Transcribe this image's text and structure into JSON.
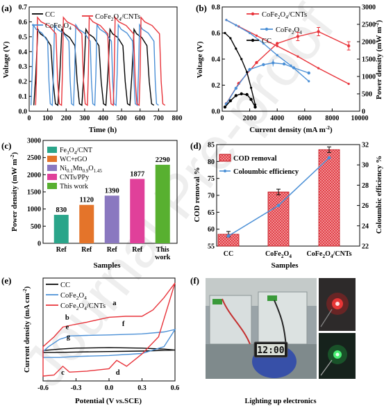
{
  "chart_data": [
    {
      "id": "a",
      "panel_label": "(a)",
      "type": "line",
      "xlabel": "Time (h)",
      "ylabel": "Voltage (V)",
      "xlim": [
        0,
        800
      ],
      "ylim": [
        0,
        0.7
      ],
      "xticks": [
        "0",
        "100",
        "200",
        "300",
        "400",
        "500",
        "600",
        "700",
        "800"
      ],
      "yticks": [
        "0.0",
        "0.1",
        "0.2",
        "0.3",
        "0.4",
        "0.5",
        "0.6",
        "0.7"
      ],
      "legend_position": "top-left",
      "series": [
        {
          "name": "CC",
          "color": "#000000",
          "period": 130,
          "start": 25,
          "rise": 22,
          "plateau": 70,
          "fall": 25,
          "peak": 0.55,
          "plateau_end": 0.44,
          "cycles": 5
        },
        {
          "name": "CoFe2O4",
          "color": "#4a8fd6",
          "period": 115,
          "start": 10,
          "rise": 12,
          "plateau": 78,
          "fall": 14,
          "peak": 0.58,
          "plateau_end": 0.47,
          "cycles": 6
        },
        {
          "name": "CoFe2O4/CNTs",
          "color": "#e8333a",
          "period": 140,
          "start": 35,
          "rise": 10,
          "plateau": 100,
          "fall": 18,
          "peak": 0.63,
          "plateau_end": 0.52,
          "cycles": 5
        }
      ]
    },
    {
      "id": "b",
      "panel_label": "(b)",
      "type": "line",
      "xlabel": "Current density (mA m",
      "xlabel_sup": "-2",
      "xlabel_close": ")",
      "ylabel": "Voltage (V)",
      "y2label": "Power density (mW m",
      "y2label_sup": "-2",
      "y2label_close": ")",
      "xlim": [
        0,
        10000
      ],
      "ylim": [
        0,
        0.8
      ],
      "y2lim": [
        0,
        3000
      ],
      "xticks": [
        "0",
        "2000",
        "4000",
        "6000",
        "8000",
        "10000"
      ],
      "yticks": [
        "0.0",
        "0.2",
        "0.4",
        "0.6",
        "0.8"
      ],
      "y2ticks": [
        "0",
        "500",
        "1000",
        "1500",
        "2000",
        "2500",
        "3000"
      ],
      "legend_position": "top-center",
      "series": [
        {
          "name": "CoFe2O4/CNTs",
          "color": "#e8333a",
          "voltage": [
            [
              300,
              0.7
            ],
            [
              1200,
              0.65
            ],
            [
              2500,
              0.58
            ],
            [
              4000,
              0.5
            ],
            [
              5500,
              0.42
            ],
            [
              7000,
              0.33
            ],
            [
              9200,
              0.21
            ]
          ],
          "power": [
            [
              300,
              220
            ],
            [
              1200,
              800
            ],
            [
              2500,
              1400
            ],
            [
              4000,
              1950
            ],
            [
              5500,
              2150
            ],
            [
              7000,
              2290
            ],
            [
              9200,
              1880
            ]
          ]
        },
        {
          "name": "CoFe2O4",
          "color": "#4a8fd6",
          "voltage": [
            [
              300,
              0.7
            ],
            [
              1000,
              0.66
            ],
            [
              2000,
              0.6
            ],
            [
              3000,
              0.52
            ],
            [
              4000,
              0.43
            ],
            [
              5000,
              0.35
            ],
            [
              6300,
              0.23
            ]
          ],
          "power": [
            [
              300,
              210
            ],
            [
              1000,
              660
            ],
            [
              2000,
              1200
            ],
            [
              3000,
              1340
            ],
            [
              3700,
              1390
            ],
            [
              4500,
              1360
            ],
            [
              5200,
              1250
            ],
            [
              6300,
              1100
            ]
          ]
        },
        {
          "name": "CC",
          "color": "#000000",
          "voltage": [
            [
              200,
              0.6
            ],
            [
              600,
              0.56
            ],
            [
              1000,
              0.48
            ],
            [
              1400,
              0.4
            ],
            [
              1800,
              0.3
            ],
            [
              2100,
              0.18
            ],
            [
              2400,
              0.05
            ]
          ],
          "power": [
            [
              200,
              120
            ],
            [
              600,
              300
            ],
            [
              1000,
              450
            ],
            [
              1400,
              500
            ],
            [
              1800,
              480
            ],
            [
              2100,
              340
            ],
            [
              2400,
              120
            ]
          ]
        }
      ]
    },
    {
      "id": "c",
      "panel_label": "(c)",
      "type": "bar",
      "xlabel": "Samples",
      "ylabel": "Power density (mW m",
      "ylabel_sup": "-2",
      "ylabel_close": ")",
      "ylim": [
        0,
        3000
      ],
      "yticks": [
        "0",
        "500",
        "1000",
        "1500",
        "2000",
        "2500",
        "3000"
      ],
      "categories": [
        "Ref",
        "Ref",
        "Ref",
        "Ref",
        "This work"
      ],
      "values": [
        830,
        1120,
        1390,
        1877,
        2290
      ],
      "value_labels": [
        "830",
        "1120",
        "1390",
        "1877",
        "2290"
      ],
      "colors": [
        "#2aa58a",
        "#e4742a",
        "#8a78c0",
        "#e0409a",
        "#58b030"
      ],
      "legend_position": "top-left",
      "legend": [
        {
          "base": "Fe",
          "sub1": "3",
          "mid": "O",
          "sub2": "4",
          "tail": "/CNT",
          "sub3": "",
          "color": "#2aa58a"
        },
        {
          "base": "WC+rGO",
          "sub1": "",
          "mid": "",
          "sub2": "",
          "tail": "",
          "sub3": "",
          "color": "#e4742a"
        },
        {
          "base": "Ni",
          "sub1": "0.1",
          "mid": "Mn",
          "sub2": "0.9",
          "tail": "O",
          "sub3": "1.45",
          "color": "#8a78c0"
        },
        {
          "base": "CNTs/PPy",
          "sub1": "",
          "mid": "",
          "sub2": "",
          "tail": "",
          "sub3": "",
          "color": "#e0409a"
        },
        {
          "base": "This work",
          "sub1": "",
          "mid": "",
          "sub2": "",
          "tail": "",
          "sub3": "",
          "color": "#58b030"
        }
      ]
    },
    {
      "id": "d",
      "panel_label": "(d)",
      "type": "bar",
      "xlabel": "Samples",
      "ylabel": "COD removal %",
      "y2label": "Coloumbic efficiency %",
      "ylim": [
        55,
        85
      ],
      "y2lim": [
        22,
        32
      ],
      "yticks": [
        "55",
        "60",
        "65",
        "70",
        "75",
        "80",
        "85"
      ],
      "y2ticks": [
        "22",
        "24",
        "26",
        "28",
        "30",
        "32"
      ],
      "categories": [
        "CC",
        "CoFe2O4",
        "CoFe2O4/CNTs"
      ],
      "cod_removal": [
        58.5,
        71.0,
        83.5
      ],
      "coulombic_efficiency": [
        23.0,
        26.0,
        30.7
      ],
      "bar_color": "#e8333a",
      "line_color": "#4a8fd6",
      "legend_position": "top-left",
      "legend": [
        "COD removal",
        "Coloumbic efficiency"
      ]
    },
    {
      "id": "e",
      "panel_label": "(e)",
      "type": "line",
      "xlabel_pre": "Potential (V ",
      "xlabel_italic": "vs.",
      "xlabel_post": "SCE)",
      "ylabel": "Current density (mA cm",
      "ylabel_sup": "-2",
      "ylabel_close": ")",
      "xlim": [
        -0.6,
        0.6
      ],
      "ylim": [
        -0.6,
        1.5
      ],
      "xticks": [
        "-0.6",
        "-0.3",
        "0.0",
        "0.3",
        "0.6"
      ],
      "legend_position": "top-left",
      "series": [
        {
          "name": "CC",
          "color": "#000000",
          "points": [
            [
              -0.6,
              -0.02
            ],
            [
              -0.5,
              -0.02
            ],
            [
              -0.3,
              -0.01
            ],
            [
              0.0,
              0.0
            ],
            [
              0.3,
              0.01
            ],
            [
              0.6,
              0.03
            ],
            [
              0.5,
              0.05
            ],
            [
              0.3,
              0.07
            ],
            [
              0.0,
              0.08
            ],
            [
              -0.3,
              0.07
            ],
            [
              -0.45,
              0.05
            ],
            [
              -0.6,
              0.02
            ]
          ]
        },
        {
          "name": "CoFe2O4",
          "color": "#4a8fd6",
          "points": [
            [
              -0.6,
              -0.12
            ],
            [
              -0.45,
              -0.12
            ],
            [
              -0.3,
              -0.1
            ],
            [
              0.0,
              -0.08
            ],
            [
              0.3,
              -0.04
            ],
            [
              0.5,
              0.1
            ],
            [
              0.6,
              0.45
            ],
            [
              0.5,
              0.4
            ],
            [
              0.3,
              0.36
            ],
            [
              0.0,
              0.34
            ],
            [
              -0.2,
              0.33
            ],
            [
              -0.35,
              0.32
            ],
            [
              -0.45,
              0.25
            ],
            [
              -0.55,
              0.1
            ],
            [
              -0.6,
              0.0
            ]
          ]
        },
        {
          "name": "CoFe2O4/CNTs",
          "color": "#e8333a",
          "points": [
            [
              -0.6,
              -0.5
            ],
            [
              -0.5,
              -0.48
            ],
            [
              -0.42,
              -0.3
            ],
            [
              -0.36,
              -0.42
            ],
            [
              -0.2,
              -0.4
            ],
            [
              0.0,
              -0.35
            ],
            [
              0.07,
              -0.18
            ],
            [
              0.16,
              -0.3
            ],
            [
              0.3,
              -0.05
            ],
            [
              0.45,
              0.3
            ],
            [
              0.6,
              1.4
            ],
            [
              0.5,
              1.1
            ],
            [
              0.4,
              0.85
            ],
            [
              0.3,
              0.72
            ],
            [
              0.15,
              0.72
            ],
            [
              0.0,
              0.7
            ],
            [
              -0.2,
              0.6
            ],
            [
              -0.32,
              0.55
            ],
            [
              -0.42,
              0.5
            ],
            [
              -0.5,
              0.3
            ],
            [
              -0.6,
              0.1
            ]
          ]
        }
      ],
      "annotations": [
        "a",
        "b",
        "c",
        "d",
        "e",
        "f",
        "g"
      ]
    }
  ],
  "panel_f": {
    "panel_label": "(f)",
    "clock_display": "12:00",
    "caption": "Lighting up electronics"
  },
  "watermark": "Journal Pre-proof"
}
